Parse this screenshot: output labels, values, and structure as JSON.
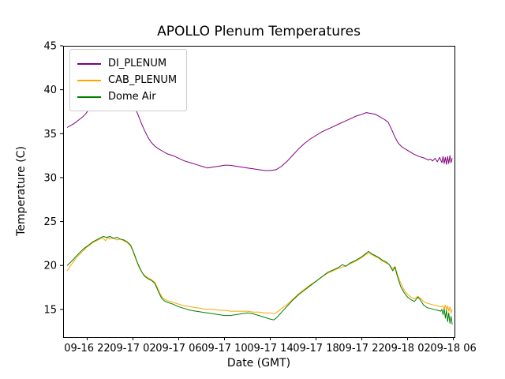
{
  "chart_data": {
    "type": "line",
    "title": "APOLLO Plenum Temperatures",
    "xlabel": "Date (GMT)",
    "ylabel": "Temperature (C)",
    "xlim": [
      -0.1,
      34.1
    ],
    "ylim": [
      11.84,
      45.0
    ],
    "grid": false,
    "legend_position": "upper-left",
    "y_ticks": [
      15,
      20,
      25,
      30,
      35,
      40,
      45
    ],
    "x_ticks": [
      {
        "t": 2,
        "label": "09-16 22"
      },
      {
        "t": 6,
        "label": "09-17 02"
      },
      {
        "t": 10,
        "label": "09-17 06"
      },
      {
        "t": 14,
        "label": "09-17 10"
      },
      {
        "t": 18,
        "label": "09-17 14"
      },
      {
        "t": 22,
        "label": "09-17 18"
      },
      {
        "t": 26,
        "label": "09-17 22"
      },
      {
        "t": 30,
        "label": "09-18 02"
      },
      {
        "t": 34,
        "label": "09-18 06"
      }
    ],
    "x_unit_note": "hours offset along the Date (GMT) axis; tick t values map to the labels above",
    "series": [
      {
        "name": "DI_PLENUM",
        "color": "#800080",
        "points": [
          [
            0.25,
            35.7
          ],
          [
            0.5,
            35.9
          ],
          [
            0.8,
            36.1
          ],
          [
            1.0,
            36.3
          ],
          [
            1.3,
            36.6
          ],
          [
            1.6,
            36.9
          ],
          [
            1.9,
            37.3
          ],
          [
            2.2,
            37.9
          ],
          [
            2.5,
            38.3
          ],
          [
            2.8,
            38.6
          ],
          [
            3.1,
            39.0
          ],
          [
            3.4,
            39.3
          ],
          [
            3.7,
            39.6
          ],
          [
            4.0,
            39.9
          ],
          [
            4.2,
            40.1
          ],
          [
            4.4,
            40.3
          ],
          [
            4.6,
            40.2
          ],
          [
            4.9,
            40.0
          ],
          [
            5.2,
            39.6
          ],
          [
            5.5,
            39.2
          ],
          [
            5.8,
            38.7
          ],
          [
            6.1,
            38.1
          ],
          [
            6.4,
            37.3
          ],
          [
            6.7,
            36.3
          ],
          [
            7.0,
            35.4
          ],
          [
            7.3,
            34.6
          ],
          [
            7.6,
            34.0
          ],
          [
            7.9,
            33.6
          ],
          [
            8.2,
            33.3
          ],
          [
            8.6,
            33.0
          ],
          [
            9.0,
            32.7
          ],
          [
            9.5,
            32.5
          ],
          [
            10.0,
            32.2
          ],
          [
            10.5,
            31.9
          ],
          [
            11.0,
            31.7
          ],
          [
            11.5,
            31.5
          ],
          [
            12.0,
            31.3
          ],
          [
            12.5,
            31.1
          ],
          [
            13.0,
            31.2
          ],
          [
            13.5,
            31.3
          ],
          [
            14.0,
            31.4
          ],
          [
            14.5,
            31.4
          ],
          [
            15.0,
            31.3
          ],
          [
            15.5,
            31.2
          ],
          [
            16.0,
            31.1
          ],
          [
            16.5,
            31.0
          ],
          [
            17.0,
            30.9
          ],
          [
            17.5,
            30.8
          ],
          [
            18.0,
            30.8
          ],
          [
            18.5,
            30.9
          ],
          [
            19.0,
            31.3
          ],
          [
            19.5,
            31.9
          ],
          [
            20.0,
            32.6
          ],
          [
            20.5,
            33.3
          ],
          [
            21.0,
            33.9
          ],
          [
            21.5,
            34.4
          ],
          [
            22.0,
            34.8
          ],
          [
            22.5,
            35.2
          ],
          [
            23.0,
            35.5
          ],
          [
            23.5,
            35.8
          ],
          [
            24.0,
            36.1
          ],
          [
            24.5,
            36.4
          ],
          [
            25.0,
            36.7
          ],
          [
            25.5,
            37.0
          ],
          [
            26.0,
            37.2
          ],
          [
            26.4,
            37.4
          ],
          [
            26.8,
            37.3
          ],
          [
            27.2,
            37.2
          ],
          [
            27.6,
            36.9
          ],
          [
            28.0,
            36.6
          ],
          [
            28.3,
            36.3
          ],
          [
            28.6,
            35.5
          ],
          [
            28.9,
            34.6
          ],
          [
            29.2,
            33.9
          ],
          [
            29.5,
            33.5
          ],
          [
            30.0,
            33.1
          ],
          [
            30.5,
            32.7
          ],
          [
            31.0,
            32.4
          ],
          [
            31.5,
            32.2
          ],
          [
            31.8,
            32.0
          ],
          [
            32.0,
            32.1
          ],
          [
            32.2,
            31.9
          ],
          [
            32.4,
            32.2
          ],
          [
            32.6,
            31.8
          ],
          [
            32.8,
            32.3
          ],
          [
            33.0,
            31.7
          ],
          [
            33.1,
            32.4
          ],
          [
            33.2,
            31.6
          ],
          [
            33.3,
            32.3
          ],
          [
            33.4,
            31.5
          ],
          [
            33.5,
            32.4
          ],
          [
            33.6,
            31.6
          ],
          [
            33.7,
            32.5
          ],
          [
            33.8,
            31.7
          ],
          [
            33.9,
            32.2
          ]
        ]
      },
      {
        "name": "CAB_PLENUM",
        "color": "#ffa500",
        "points": [
          [
            0.25,
            19.4
          ],
          [
            0.5,
            19.9
          ],
          [
            0.8,
            20.4
          ],
          [
            1.0,
            20.8
          ],
          [
            1.3,
            21.2
          ],
          [
            1.6,
            21.6
          ],
          [
            1.9,
            22.0
          ],
          [
            2.2,
            22.3
          ],
          [
            2.5,
            22.6
          ],
          [
            2.8,
            22.8
          ],
          [
            3.1,
            23.0
          ],
          [
            3.4,
            23.1
          ],
          [
            3.6,
            22.8
          ],
          [
            3.8,
            23.2
          ],
          [
            4.0,
            23.0
          ],
          [
            4.3,
            23.1
          ],
          [
            4.6,
            22.9
          ],
          [
            4.9,
            23.0
          ],
          [
            5.2,
            22.8
          ],
          [
            5.5,
            22.6
          ],
          [
            5.8,
            22.2
          ],
          [
            6.0,
            21.6
          ],
          [
            6.2,
            20.9
          ],
          [
            6.4,
            20.2
          ],
          [
            6.6,
            19.6
          ],
          [
            6.8,
            19.2
          ],
          [
            7.0,
            18.9
          ],
          [
            7.3,
            18.6
          ],
          [
            7.6,
            18.4
          ],
          [
            7.9,
            18.1
          ],
          [
            8.1,
            17.6
          ],
          [
            8.3,
            17.0
          ],
          [
            8.5,
            16.5
          ],
          [
            8.7,
            16.2
          ],
          [
            9.0,
            16.0
          ],
          [
            9.5,
            15.8
          ],
          [
            10.0,
            15.6
          ],
          [
            10.5,
            15.4
          ],
          [
            11.0,
            15.3
          ],
          [
            11.5,
            15.2
          ],
          [
            12.0,
            15.1
          ],
          [
            12.5,
            15.0
          ],
          [
            13.0,
            15.0
          ],
          [
            13.5,
            14.9
          ],
          [
            14.0,
            14.9
          ],
          [
            14.5,
            14.8
          ],
          [
            15.0,
            14.8
          ],
          [
            15.5,
            14.8
          ],
          [
            16.0,
            14.8
          ],
          [
            16.5,
            14.7
          ],
          [
            17.0,
            14.7
          ],
          [
            17.5,
            14.6
          ],
          [
            18.0,
            14.6
          ],
          [
            18.3,
            14.5
          ],
          [
            18.6,
            14.7
          ],
          [
            19.0,
            15.1
          ],
          [
            19.5,
            15.6
          ],
          [
            20.0,
            16.2
          ],
          [
            20.5,
            16.8
          ],
          [
            21.0,
            17.3
          ],
          [
            21.5,
            17.8
          ],
          [
            22.0,
            18.2
          ],
          [
            22.5,
            18.7
          ],
          [
            23.0,
            19.1
          ],
          [
            23.5,
            19.4
          ],
          [
            24.0,
            19.7
          ],
          [
            24.5,
            19.9
          ],
          [
            25.0,
            20.2
          ],
          [
            25.5,
            20.5
          ],
          [
            26.0,
            20.9
          ],
          [
            26.3,
            21.2
          ],
          [
            26.6,
            21.4
          ],
          [
            26.9,
            21.2
          ],
          [
            27.2,
            21.0
          ],
          [
            27.5,
            20.8
          ],
          [
            27.8,
            20.5
          ],
          [
            28.1,
            20.3
          ],
          [
            28.4,
            20.1
          ],
          [
            28.7,
            19.6
          ],
          [
            28.9,
            19.9
          ],
          [
            29.1,
            19.0
          ],
          [
            29.4,
            18.0
          ],
          [
            29.7,
            17.2
          ],
          [
            30.0,
            16.7
          ],
          [
            30.3,
            16.4
          ],
          [
            30.6,
            16.2
          ],
          [
            30.9,
            16.5
          ],
          [
            31.1,
            16.3
          ],
          [
            31.4,
            15.9
          ],
          [
            31.7,
            15.7
          ],
          [
            32.0,
            15.6
          ],
          [
            32.3,
            15.5
          ],
          [
            32.6,
            15.4
          ],
          [
            32.9,
            15.3
          ],
          [
            33.1,
            15.4
          ],
          [
            33.2,
            15.1
          ],
          [
            33.3,
            15.5
          ],
          [
            33.4,
            14.9
          ],
          [
            33.5,
            15.4
          ],
          [
            33.6,
            14.8
          ],
          [
            33.7,
            15.3
          ],
          [
            33.8,
            14.6
          ],
          [
            33.9,
            15.0
          ]
        ]
      },
      {
        "name": "Dome Air",
        "color": "#008000",
        "points": [
          [
            0.25,
            20.0
          ],
          [
            0.5,
            20.3
          ],
          [
            0.8,
            20.7
          ],
          [
            1.0,
            21.0
          ],
          [
            1.3,
            21.4
          ],
          [
            1.6,
            21.8
          ],
          [
            1.9,
            22.1
          ],
          [
            2.2,
            22.4
          ],
          [
            2.5,
            22.7
          ],
          [
            2.8,
            22.9
          ],
          [
            3.1,
            23.1
          ],
          [
            3.4,
            23.3
          ],
          [
            3.7,
            23.2
          ],
          [
            4.0,
            23.3
          ],
          [
            4.3,
            23.1
          ],
          [
            4.6,
            23.2
          ],
          [
            4.9,
            23.0
          ],
          [
            5.2,
            22.9
          ],
          [
            5.5,
            22.7
          ],
          [
            5.8,
            22.3
          ],
          [
            6.0,
            21.7
          ],
          [
            6.2,
            21.0
          ],
          [
            6.4,
            20.3
          ],
          [
            6.6,
            19.7
          ],
          [
            6.8,
            19.2
          ],
          [
            7.0,
            18.8
          ],
          [
            7.3,
            18.5
          ],
          [
            7.6,
            18.3
          ],
          [
            7.9,
            18.0
          ],
          [
            8.1,
            17.4
          ],
          [
            8.3,
            16.8
          ],
          [
            8.5,
            16.3
          ],
          [
            8.7,
            16.0
          ],
          [
            9.0,
            15.8
          ],
          [
            9.5,
            15.6
          ],
          [
            10.0,
            15.3
          ],
          [
            10.5,
            15.1
          ],
          [
            11.0,
            14.9
          ],
          [
            11.5,
            14.8
          ],
          [
            12.0,
            14.7
          ],
          [
            12.5,
            14.6
          ],
          [
            13.0,
            14.5
          ],
          [
            13.5,
            14.4
          ],
          [
            14.0,
            14.3
          ],
          [
            14.5,
            14.3
          ],
          [
            15.0,
            14.4
          ],
          [
            15.5,
            14.5
          ],
          [
            16.0,
            14.6
          ],
          [
            16.5,
            14.5
          ],
          [
            17.0,
            14.3
          ],
          [
            17.5,
            14.1
          ],
          [
            18.0,
            13.9
          ],
          [
            18.3,
            13.8
          ],
          [
            18.6,
            14.1
          ],
          [
            19.0,
            14.7
          ],
          [
            19.5,
            15.4
          ],
          [
            20.0,
            16.1
          ],
          [
            20.5,
            16.7
          ],
          [
            21.0,
            17.2
          ],
          [
            21.5,
            17.7
          ],
          [
            22.0,
            18.2
          ],
          [
            22.5,
            18.7
          ],
          [
            23.0,
            19.2
          ],
          [
            23.5,
            19.5
          ],
          [
            24.0,
            19.8
          ],
          [
            24.3,
            20.1
          ],
          [
            24.6,
            19.9
          ],
          [
            25.0,
            20.3
          ],
          [
            25.5,
            20.6
          ],
          [
            26.0,
            21.0
          ],
          [
            26.3,
            21.3
          ],
          [
            26.6,
            21.6
          ],
          [
            26.9,
            21.3
          ],
          [
            27.2,
            21.1
          ],
          [
            27.5,
            20.9
          ],
          [
            27.8,
            20.6
          ],
          [
            28.1,
            20.4
          ],
          [
            28.4,
            20.1
          ],
          [
            28.7,
            19.4
          ],
          [
            28.9,
            19.8
          ],
          [
            29.1,
            18.8
          ],
          [
            29.4,
            17.6
          ],
          [
            29.7,
            16.9
          ],
          [
            30.0,
            16.4
          ],
          [
            30.3,
            16.1
          ],
          [
            30.6,
            15.9
          ],
          [
            30.9,
            16.4
          ],
          [
            31.1,
            16.1
          ],
          [
            31.4,
            15.5
          ],
          [
            31.7,
            15.2
          ],
          [
            32.0,
            15.1
          ],
          [
            32.3,
            15.0
          ],
          [
            32.6,
            14.9
          ],
          [
            32.9,
            14.8
          ],
          [
            33.0,
            15.0
          ],
          [
            33.1,
            14.4
          ],
          [
            33.2,
            15.1
          ],
          [
            33.3,
            14.0
          ],
          [
            33.4,
            14.9
          ],
          [
            33.5,
            13.6
          ],
          [
            33.6,
            14.6
          ],
          [
            33.7,
            13.4
          ],
          [
            33.8,
            14.2
          ],
          [
            33.9,
            13.3
          ]
        ]
      }
    ]
  }
}
